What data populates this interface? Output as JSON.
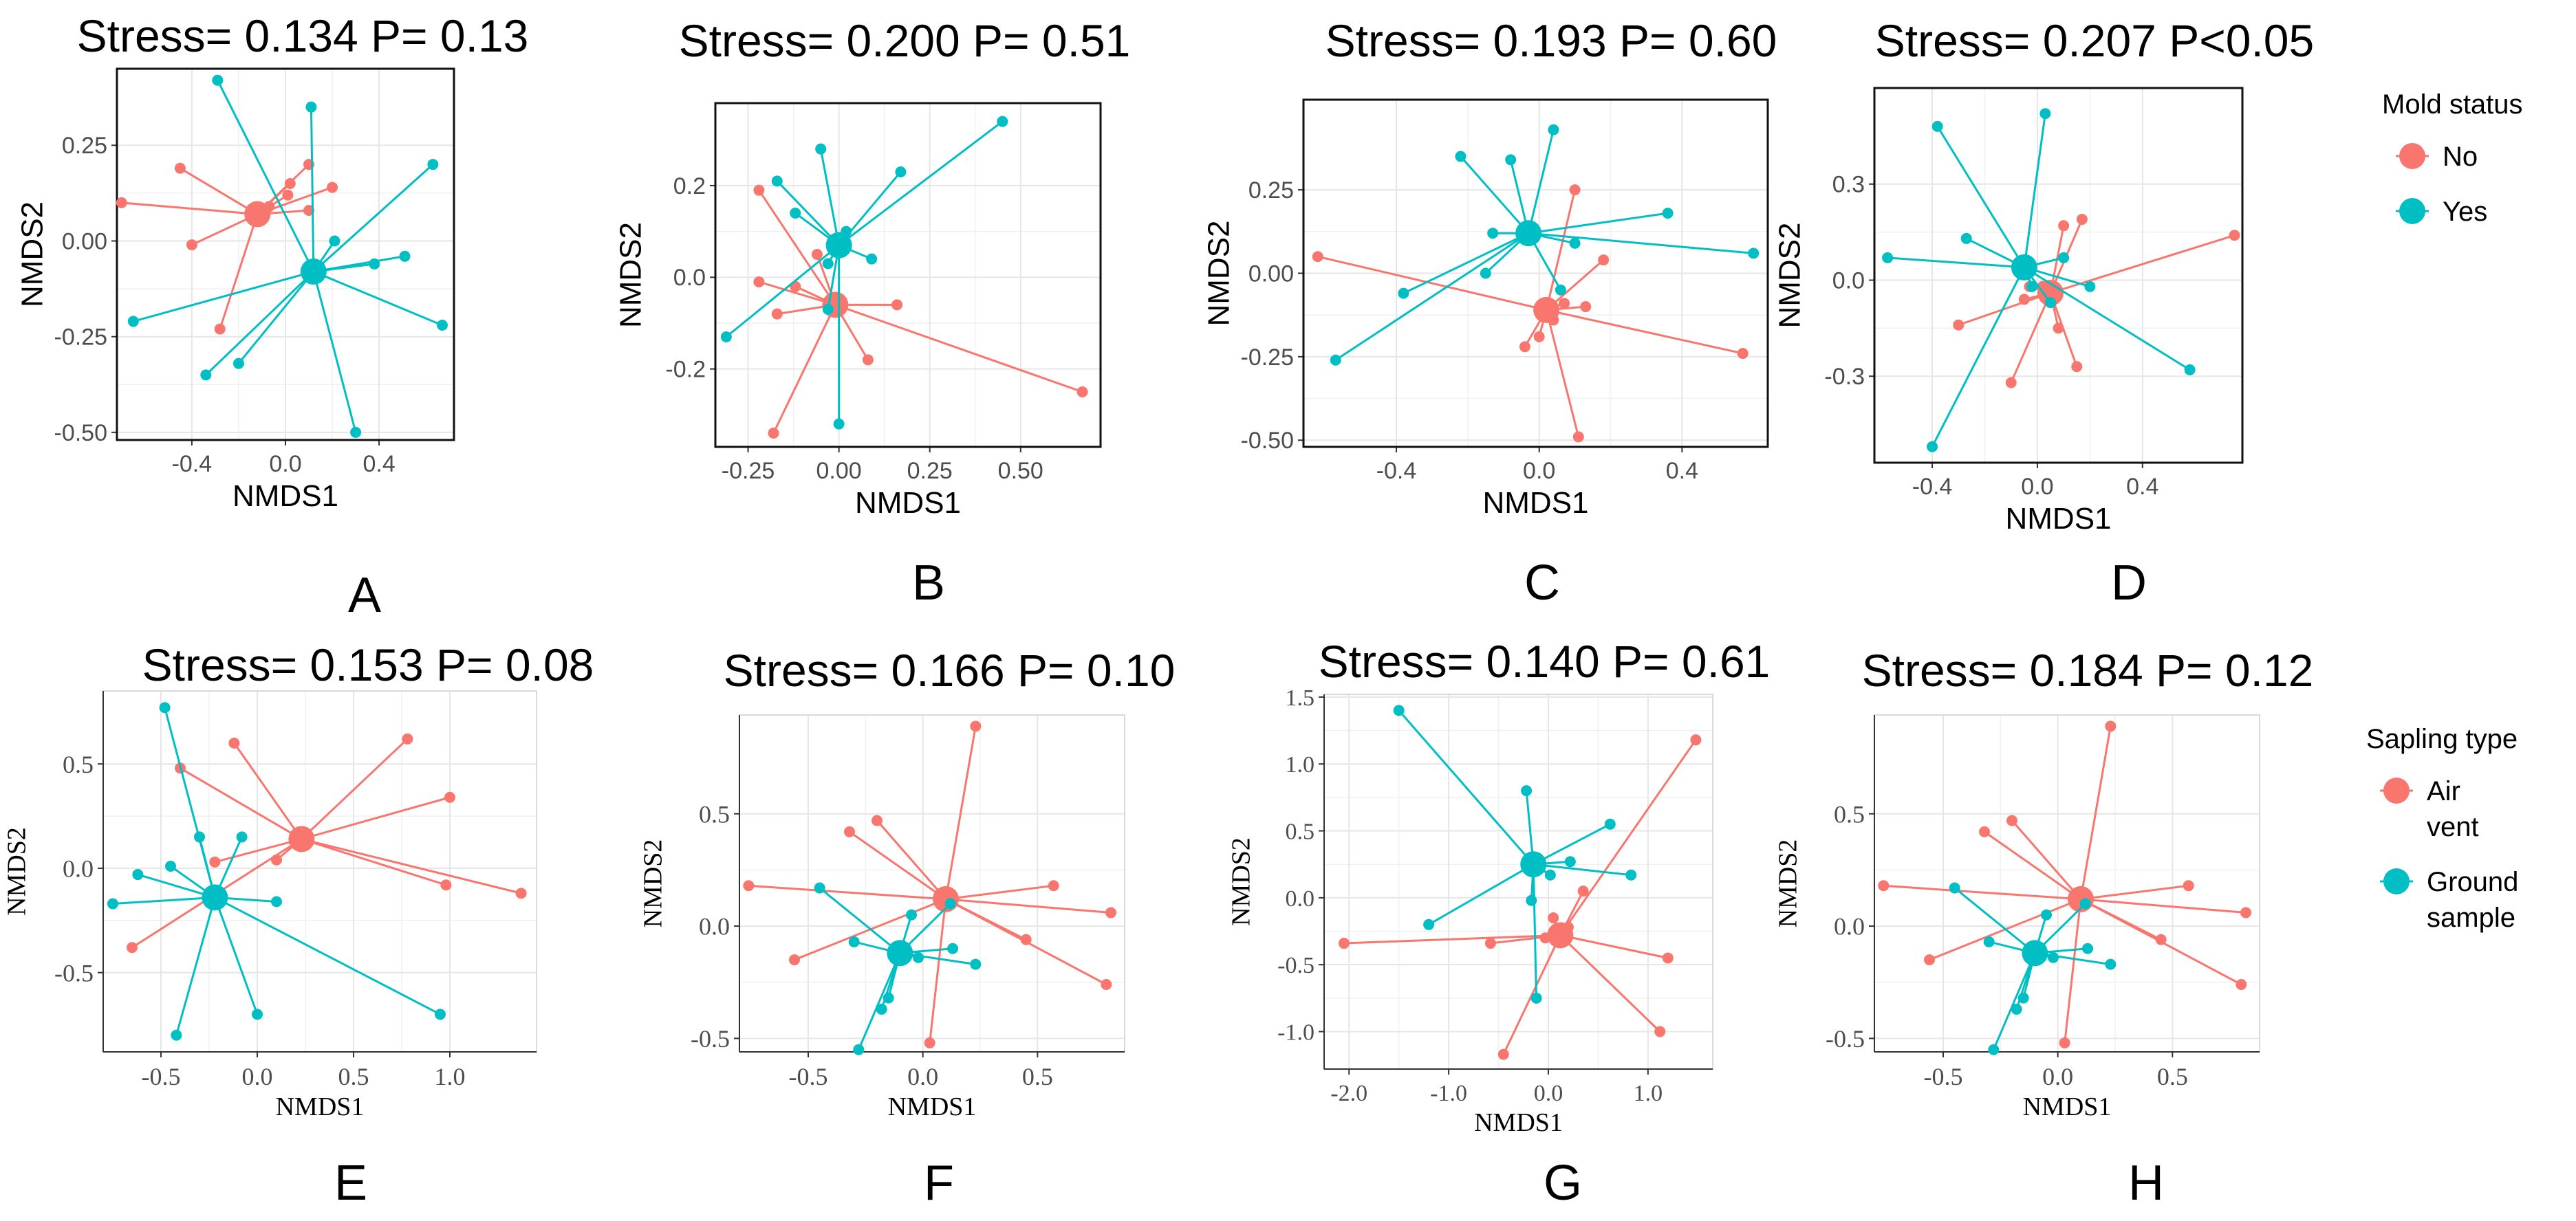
{
  "figure": {
    "type": "NMDS ordination panel figure",
    "colors": {
      "red": "#F8766D",
      "cyan": "#00BFC4",
      "grid": "#e6e6e6",
      "frame": "#111111"
    }
  },
  "legends": [
    {
      "title": "Mold status",
      "entries": [
        {
          "label": "No",
          "color": "#F8766D"
        },
        {
          "label": "Yes",
          "color": "#00BFC4"
        }
      ]
    },
    {
      "title": "Sapling type",
      "entries": [
        {
          "label": "Air vent",
          "color": "#F8766D"
        },
        {
          "label": "Ground sample",
          "color": "#00BFC4"
        }
      ]
    }
  ],
  "chart_data": [
    {
      "panel": "A",
      "type": "scatter",
      "title": "Stress= 0.134 P= 0.13",
      "xlabel": "NMDS1",
      "ylabel": "NMDS2",
      "xlim": [
        -0.72,
        0.72
      ],
      "ylim": [
        -0.52,
        0.45
      ],
      "xticks": [
        -0.4,
        0.0,
        0.4
      ],
      "yticks": [
        0.25,
        0.0,
        -0.25,
        -0.5
      ],
      "xticklabels": [
        "-0.4",
        "0.0",
        "0.4"
      ],
      "yticklabels": [
        "0.25",
        "0.00",
        "-0.25",
        "-0.50"
      ],
      "series": [
        {
          "name": "No",
          "color": "#F8766D",
          "centroid": [
            -0.12,
            0.07
          ],
          "points": [
            [
              -0.7,
              0.1
            ],
            [
              -0.45,
              0.19
            ],
            [
              -0.4,
              -0.01
            ],
            [
              -0.28,
              -0.23
            ],
            [
              -0.13,
              0.08
            ],
            [
              -0.07,
              0.09
            ],
            [
              0.01,
              0.12
            ],
            [
              0.02,
              0.15
            ],
            [
              0.1,
              0.2
            ],
            [
              0.1,
              0.08
            ],
            [
              0.2,
              0.14
            ]
          ]
        },
        {
          "name": "Yes",
          "color": "#00BFC4",
          "centroid": [
            0.12,
            -0.08
          ],
          "points": [
            [
              -0.29,
              0.42
            ],
            [
              -0.65,
              -0.21
            ],
            [
              -0.34,
              -0.35
            ],
            [
              -0.2,
              -0.32
            ],
            [
              0.11,
              0.35
            ],
            [
              0.21,
              0.0
            ],
            [
              0.3,
              -0.5
            ],
            [
              0.38,
              -0.06
            ],
            [
              0.51,
              -0.04
            ],
            [
              0.63,
              0.2
            ],
            [
              0.67,
              -0.22
            ]
          ]
        }
      ]
    },
    {
      "panel": "B",
      "type": "scatter",
      "title": "Stress= 0.200 P= 0.51",
      "xlabel": "NMDS1",
      "ylabel": "NMDS2",
      "xlim": [
        -0.34,
        0.72
      ],
      "ylim": [
        -0.37,
        0.38
      ],
      "xticks": [
        -0.25,
        0.0,
        0.25,
        0.5
      ],
      "yticks": [
        0.2,
        0.0,
        -0.2
      ],
      "xticklabels": [
        "-0.25",
        "0.00",
        "0.25",
        "0.50"
      ],
      "yticklabels": [
        "0.2",
        "0.0",
        "-0.2"
      ],
      "series": [
        {
          "name": "No",
          "color": "#F8766D",
          "centroid": [
            -0.01,
            -0.06
          ],
          "points": [
            [
              -0.22,
              0.19
            ],
            [
              -0.22,
              -0.01
            ],
            [
              -0.18,
              -0.34
            ],
            [
              -0.17,
              -0.08
            ],
            [
              -0.12,
              -0.02
            ],
            [
              -0.06,
              0.05
            ],
            [
              0.08,
              -0.18
            ],
            [
              0.16,
              -0.06
            ],
            [
              0.67,
              -0.25
            ]
          ]
        },
        {
          "name": "Yes",
          "color": "#00BFC4",
          "centroid": [
            0.0,
            0.07
          ],
          "points": [
            [
              -0.31,
              -0.13
            ],
            [
              -0.17,
              0.21
            ],
            [
              -0.12,
              0.14
            ],
            [
              -0.05,
              0.28
            ],
            [
              -0.03,
              0.03
            ],
            [
              -0.03,
              -0.07
            ],
            [
              0.0,
              -0.32
            ],
            [
              0.02,
              0.1
            ],
            [
              0.09,
              0.04
            ],
            [
              0.17,
              0.23
            ],
            [
              0.45,
              0.34
            ]
          ]
        }
      ]
    },
    {
      "panel": "C",
      "type": "scatter",
      "title": "Stress= 0.193 P= 0.60",
      "xlabel": "NMDS1",
      "ylabel": "NMDS2",
      "xlim": [
        -0.66,
        0.64
      ],
      "ylim": [
        -0.52,
        0.52
      ],
      "xticks": [
        -0.4,
        0.0,
        0.4
      ],
      "yticks": [
        0.25,
        0.0,
        -0.25,
        -0.5
      ],
      "xticklabels": [
        "-0.4",
        "0.0",
        "0.4"
      ],
      "yticklabels": [
        "0.25",
        "0.00",
        "-0.25",
        "-0.50"
      ],
      "series": [
        {
          "name": "No",
          "color": "#F8766D",
          "centroid": [
            0.02,
            -0.11
          ],
          "points": [
            [
              -0.62,
              0.05
            ],
            [
              -0.04,
              -0.22
            ],
            [
              0.0,
              -0.19
            ],
            [
              0.04,
              -0.14
            ],
            [
              0.07,
              -0.09
            ],
            [
              0.1,
              0.25
            ],
            [
              0.11,
              -0.49
            ],
            [
              0.13,
              -0.1
            ],
            [
              0.18,
              0.04
            ],
            [
              0.57,
              -0.24
            ]
          ]
        },
        {
          "name": "Yes",
          "color": "#00BFC4",
          "centroid": [
            -0.03,
            0.12
          ],
          "points": [
            [
              -0.57,
              -0.26
            ],
            [
              -0.38,
              -0.06
            ],
            [
              -0.22,
              0.35
            ],
            [
              -0.15,
              0.0
            ],
            [
              -0.13,
              0.12
            ],
            [
              -0.08,
              0.34
            ],
            [
              0.04,
              0.43
            ],
            [
              0.06,
              -0.05
            ],
            [
              0.1,
              0.09
            ],
            [
              0.36,
              0.18
            ],
            [
              0.6,
              0.06
            ]
          ]
        }
      ]
    },
    {
      "panel": "D",
      "type": "scatter",
      "title": "Stress= 0.207 P<0.05",
      "xlabel": "NMDS1",
      "ylabel": "NMDS2",
      "xlim": [
        -0.62,
        0.78
      ],
      "ylim": [
        -0.57,
        0.6
      ],
      "xticks": [
        -0.4,
        0.0,
        0.4
      ],
      "yticks": [
        0.3,
        0.0,
        -0.3
      ],
      "xticklabels": [
        "-0.4",
        "0.0",
        "0.4"
      ],
      "yticklabels": [
        "0.3",
        "0.0",
        "-0.3"
      ],
      "series": [
        {
          "name": "No",
          "color": "#F8766D",
          "centroid": [
            0.05,
            -0.04
          ],
          "points": [
            [
              -0.3,
              -0.14
            ],
            [
              -0.1,
              -0.32
            ],
            [
              -0.05,
              -0.06
            ],
            [
              -0.03,
              -0.02
            ],
            [
              0.02,
              -0.02
            ],
            [
              0.08,
              -0.15
            ],
            [
              0.1,
              0.17
            ],
            [
              0.15,
              -0.27
            ],
            [
              0.17,
              0.19
            ],
            [
              0.75,
              0.14
            ]
          ]
        },
        {
          "name": "Yes",
          "color": "#00BFC4",
          "centroid": [
            -0.05,
            0.04
          ],
          "points": [
            [
              -0.57,
              0.07
            ],
            [
              -0.4,
              -0.52
            ],
            [
              -0.38,
              0.48
            ],
            [
              -0.27,
              0.13
            ],
            [
              -0.02,
              -0.02
            ],
            [
              0.03,
              0.52
            ],
            [
              0.05,
              -0.07
            ],
            [
              0.1,
              0.07
            ],
            [
              0.2,
              -0.02
            ],
            [
              0.58,
              -0.28
            ]
          ]
        }
      ]
    },
    {
      "panel": "E",
      "type": "scatter",
      "title": "Stress= 0.153 P= 0.08",
      "xlabel": "NMDS1",
      "ylabel": "NMDS2",
      "xlim": [
        -0.8,
        1.45
      ],
      "ylim": [
        -0.88,
        0.85
      ],
      "xticks": [
        -0.5,
        0.0,
        0.5,
        1.0
      ],
      "yticks": [
        0.5,
        0.0,
        -0.5
      ],
      "xticklabels": [
        "-0.5",
        "0.0",
        "0.5",
        "1.0"
      ],
      "yticklabels": [
        "0.5",
        "0.0",
        "-0.5"
      ],
      "series": [
        {
          "name": "Air vent",
          "color": "#F8766D",
          "centroid": [
            0.23,
            0.14
          ],
          "points": [
            [
              -0.65,
              -0.38
            ],
            [
              -0.4,
              0.48
            ],
            [
              -0.22,
              0.03
            ],
            [
              -0.12,
              0.6
            ],
            [
              0.1,
              0.04
            ],
            [
              0.78,
              0.62
            ],
            [
              0.98,
              -0.08
            ],
            [
              1.0,
              0.34
            ],
            [
              1.37,
              -0.12
            ]
          ]
        },
        {
          "name": "Ground sample",
          "color": "#00BFC4",
          "centroid": [
            -0.22,
            -0.14
          ],
          "points": [
            [
              -0.75,
              -0.17
            ],
            [
              -0.62,
              -0.03
            ],
            [
              -0.48,
              0.77
            ],
            [
              -0.45,
              0.01
            ],
            [
              -0.42,
              -0.8
            ],
            [
              -0.3,
              0.15
            ],
            [
              -0.08,
              0.15
            ],
            [
              0.0,
              -0.7
            ],
            [
              0.95,
              -0.7
            ],
            [
              0.1,
              -0.16
            ]
          ]
        }
      ]
    },
    {
      "panel": "F",
      "type": "scatter",
      "title": "Stress= 0.166 P= 0.10",
      "xlabel": "NMDS1",
      "ylabel": "NMDS2",
      "xlim": [
        -0.8,
        0.88
      ],
      "ylim": [
        -0.56,
        0.94
      ],
      "xticks": [
        -0.5,
        0.0,
        0.5
      ],
      "yticks": [
        0.5,
        0.0,
        -0.5
      ],
      "xticklabels": [
        "-0.5",
        "0.0",
        "0.5"
      ],
      "yticklabels": [
        "0.5",
        "0.0",
        "-0.5"
      ],
      "series": [
        {
          "name": "Air vent",
          "color": "#F8766D",
          "centroid": [
            0.1,
            0.12
          ],
          "points": [
            [
              -0.76,
              0.18
            ],
            [
              -0.56,
              -0.15
            ],
            [
              -0.32,
              0.42
            ],
            [
              -0.2,
              0.47
            ],
            [
              0.03,
              -0.52
            ],
            [
              0.23,
              0.89
            ],
            [
              0.45,
              -0.06
            ],
            [
              0.57,
              0.18
            ],
            [
              0.8,
              -0.26
            ],
            [
              0.82,
              0.06
            ]
          ]
        },
        {
          "name": "Ground sample",
          "color": "#00BFC4",
          "centroid": [
            -0.1,
            -0.12
          ],
          "points": [
            [
              -0.45,
              0.17
            ],
            [
              -0.3,
              -0.07
            ],
            [
              -0.28,
              -0.55
            ],
            [
              -0.18,
              -0.37
            ],
            [
              -0.15,
              -0.32
            ],
            [
              -0.05,
              0.05
            ],
            [
              0.12,
              0.1
            ],
            [
              0.13,
              -0.1
            ],
            [
              0.23,
              -0.17
            ],
            [
              -0.02,
              -0.14
            ]
          ]
        }
      ]
    },
    {
      "panel": "G",
      "type": "scatter",
      "title": "Stress= 0.140 P= 0.61",
      "xlabel": "NMDS1",
      "ylabel": "NMDS2",
      "xlim": [
        -2.25,
        1.65
      ],
      "ylim": [
        -1.28,
        1.52
      ],
      "xticks": [
        -2.0,
        -1.0,
        0.0,
        1.0
      ],
      "yticks": [
        1.5,
        1.0,
        0.5,
        0.0,
        -0.5,
        -1.0
      ],
      "xticklabels": [
        "-2.0",
        "-1.0",
        "0.0",
        "1.0"
      ],
      "yticklabels": [
        "1.5",
        "1.0",
        "0.5",
        "0.0",
        "-0.5",
        "-1.0"
      ],
      "series": [
        {
          "name": "Air vent",
          "color": "#F8766D",
          "centroid": [
            0.12,
            -0.28
          ],
          "points": [
            [
              -2.05,
              -0.34
            ],
            [
              -0.58,
              -0.34
            ],
            [
              -0.45,
              -1.17
            ],
            [
              -0.03,
              -0.3
            ],
            [
              0.05,
              -0.15
            ],
            [
              0.2,
              -0.22
            ],
            [
              0.35,
              0.05
            ],
            [
              1.12,
              -1.0
            ],
            [
              1.2,
              -0.45
            ],
            [
              1.48,
              1.18
            ]
          ]
        },
        {
          "name": "Ground sample",
          "color": "#00BFC4",
          "centroid": [
            -0.15,
            0.25
          ],
          "points": [
            [
              -1.5,
              1.4
            ],
            [
              -1.2,
              -0.2
            ],
            [
              -0.22,
              0.8
            ],
            [
              -0.17,
              -0.02
            ],
            [
              -0.12,
              -0.75
            ],
            [
              0.02,
              0.17
            ],
            [
              0.22,
              0.27
            ],
            [
              0.62,
              0.55
            ],
            [
              0.83,
              0.17
            ]
          ]
        }
      ]
    },
    {
      "panel": "H",
      "type": "scatter",
      "title": "Stress= 0.184 P= 0.12",
      "xlabel": "NMDS1",
      "ylabel": "NMDS2",
      "xlim": [
        -0.8,
        0.88
      ],
      "ylim": [
        -0.56,
        0.94
      ],
      "xticks": [
        -0.5,
        0.0,
        0.5
      ],
      "yticks": [
        0.5,
        0.0,
        -0.5
      ],
      "xticklabels": [
        "-0.5",
        "0.0",
        "0.5"
      ],
      "yticklabels": [
        "0.5",
        "0.0",
        "-0.5"
      ],
      "series": [
        {
          "name": "Air vent",
          "color": "#F8766D",
          "centroid": [
            0.1,
            0.12
          ],
          "points": [
            [
              -0.76,
              0.18
            ],
            [
              -0.56,
              -0.15
            ],
            [
              -0.32,
              0.42
            ],
            [
              -0.2,
              0.47
            ],
            [
              0.03,
              -0.52
            ],
            [
              0.23,
              0.89
            ],
            [
              0.45,
              -0.06
            ],
            [
              0.57,
              0.18
            ],
            [
              0.8,
              -0.26
            ],
            [
              0.82,
              0.06
            ]
          ]
        },
        {
          "name": "Ground sample",
          "color": "#00BFC4",
          "centroid": [
            -0.1,
            -0.12
          ],
          "points": [
            [
              -0.45,
              0.17
            ],
            [
              -0.3,
              -0.07
            ],
            [
              -0.28,
              -0.55
            ],
            [
              -0.18,
              -0.37
            ],
            [
              -0.15,
              -0.32
            ],
            [
              -0.05,
              0.05
            ],
            [
              0.12,
              0.1
            ],
            [
              0.13,
              -0.1
            ],
            [
              0.23,
              -0.17
            ],
            [
              -0.02,
              -0.14
            ]
          ]
        }
      ]
    }
  ]
}
